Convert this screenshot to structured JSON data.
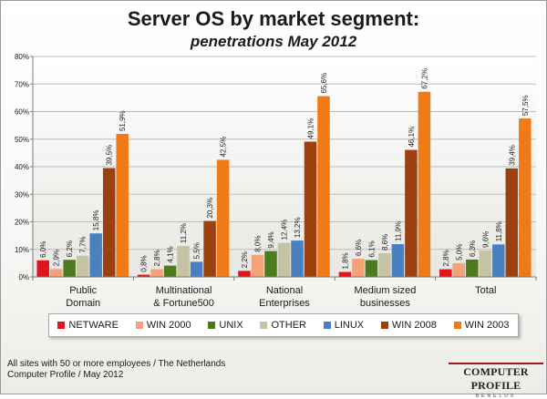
{
  "title": "Server OS by market segment:",
  "subtitle": "penetrations May 2012",
  "footnote_line1": "All sites with 50 or more employees / The Netherlands",
  "footnote_line2": "Computer Profile / May 2012",
  "logo": {
    "main": "COMPUTER PROFILE",
    "sub": "BENELUX"
  },
  "chart_data": {
    "type": "bar",
    "title": "Server OS by market segment:",
    "subtitle": "penetrations May 2012",
    "categories": [
      [
        "Public",
        "Domain"
      ],
      [
        "Multinational",
        "& Fortune500"
      ],
      [
        "National",
        "Enterprises"
      ],
      [
        "Medium sized",
        "businesses"
      ],
      [
        "Total"
      ]
    ],
    "ylim": [
      0,
      80
    ],
    "yticks": [
      "0%",
      "10%",
      "20%",
      "30%",
      "40%",
      "50%",
      "60%",
      "70%",
      "80%"
    ],
    "grid": true,
    "legend_position": "bottom",
    "series": [
      {
        "name": "NETWARE",
        "color": "#e0141c",
        "values": [
          6.0,
          0.8,
          2.2,
          1.8,
          2.8
        ],
        "labels": [
          "6,0%",
          "0,8%",
          "2,2%",
          "1,8%",
          "2,8%"
        ]
      },
      {
        "name": "WIN 2000",
        "color": "#f4a27a",
        "values": [
          2.9,
          2.8,
          8.0,
          6.6,
          5.0
        ],
        "labels": [
          "2,9%",
          "2,8%",
          "8,0%",
          "6,6%",
          "5,0%"
        ]
      },
      {
        "name": "UNIX",
        "color": "#4e7a1e",
        "values": [
          6.2,
          4.1,
          9.4,
          6.1,
          6.3
        ],
        "labels": [
          "6,2%",
          "4,1%",
          "9,4%",
          "6,1%",
          "6,3%"
        ]
      },
      {
        "name": "OTHER",
        "color": "#c6c2a4",
        "values": [
          7.7,
          11.2,
          12.4,
          8.6,
          9.6
        ],
        "labels": [
          "7,7%",
          "11,2%",
          "12,4%",
          "8,6%",
          "9,6%"
        ]
      },
      {
        "name": "LINUX",
        "color": "#4a7fc0",
        "values": [
          15.8,
          5.5,
          13.2,
          11.9,
          11.8
        ],
        "labels": [
          "15,8%",
          "5,5%",
          "13,2%",
          "11,9%",
          "11,8%"
        ]
      },
      {
        "name": "WIN 2008",
        "color": "#9c4010",
        "values": [
          39.5,
          20.3,
          49.1,
          46.1,
          39.4
        ],
        "labels": [
          "39,5%",
          "20,3%",
          "49,1%",
          "46,1%",
          "39,4%"
        ]
      },
      {
        "name": "WIN 2003",
        "color": "#f07a18",
        "values": [
          51.9,
          42.5,
          65.6,
          67.2,
          57.5
        ],
        "labels": [
          "51,9%",
          "42,5%",
          "65,6%",
          "67,2%",
          "57,5%"
        ]
      }
    ]
  }
}
